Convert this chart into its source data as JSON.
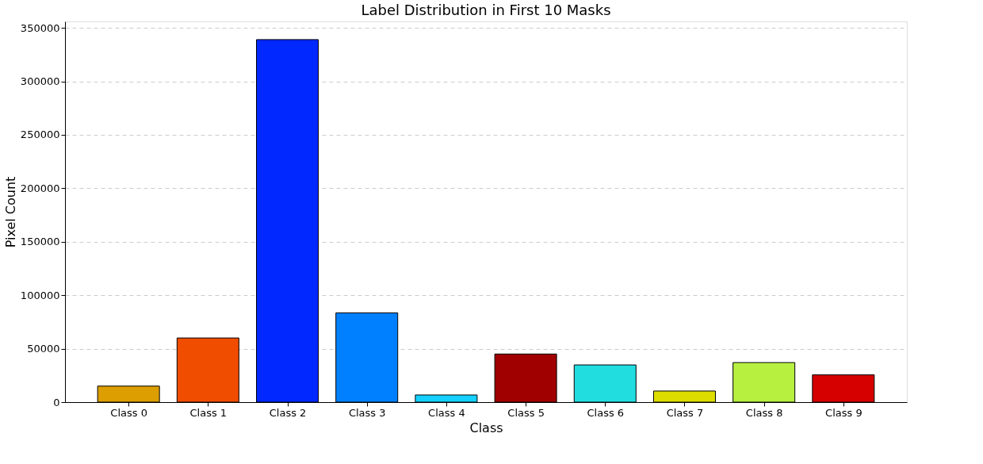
{
  "chart_data": {
    "type": "bar",
    "title": "Label Distribution in First 10 Masks",
    "xlabel": "Class",
    "ylabel": "Pixel Count",
    "categories": [
      "Class 0",
      "Class 1",
      "Class 2",
      "Class 3",
      "Class 4",
      "Class 5",
      "Class 6",
      "Class 7",
      "Class 8",
      "Class 9"
    ],
    "values": [
      15000,
      60000,
      339000,
      83500,
      6700,
      45000,
      34800,
      10400,
      37000,
      25500
    ],
    "colors": [
      "#dc9e00",
      "#f04d00",
      "#0028ff",
      "#0080ff",
      "#14d0ff",
      "#a00000",
      "#22dde0",
      "#dddd00",
      "#b8f040",
      "#d60000"
    ],
    "ylim": [
      0,
      356000
    ],
    "yticks": [
      0,
      50000,
      100000,
      150000,
      200000,
      250000,
      300000,
      350000
    ],
    "grid": "y"
  }
}
